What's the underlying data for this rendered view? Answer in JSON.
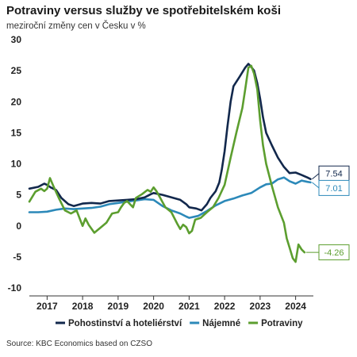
{
  "chart_data": {
    "type": "line",
    "title": "Potraviny versus služby ve spotřebitelském koši",
    "subtitle": "meziroční změny cen v Česku v  %",
    "source": "Source: KBC Economics based on CZSO",
    "ylim": [
      -10,
      30
    ],
    "yticks": [
      30,
      25,
      20,
      15,
      10,
      5,
      0,
      -5,
      -10
    ],
    "xlim": [
      2016.5,
      2024.5
    ],
    "xticks": [
      2017,
      2018,
      2019,
      2020,
      2021,
      2022,
      2023,
      2024
    ],
    "grid": "none",
    "legend_position": "bottom",
    "series": [
      {
        "name": "Pohostinství a hoteliérství",
        "color": "#12284c",
        "end_label": "7.54",
        "points": [
          [
            2016.5,
            6.0
          ],
          [
            2016.75,
            6.3
          ],
          [
            2016.92,
            6.8
          ],
          [
            2017.0,
            6.6
          ],
          [
            2017.1,
            6.2
          ],
          [
            2017.25,
            5.8
          ],
          [
            2017.4,
            4.5
          ],
          [
            2017.6,
            3.5
          ],
          [
            2017.75,
            3.2
          ],
          [
            2018.0,
            3.6
          ],
          [
            2018.25,
            3.7
          ],
          [
            2018.5,
            3.6
          ],
          [
            2018.75,
            4.0
          ],
          [
            2019.0,
            4.1
          ],
          [
            2019.25,
            4.2
          ],
          [
            2019.5,
            4.3
          ],
          [
            2019.75,
            4.6
          ],
          [
            2019.92,
            5.1
          ],
          [
            2020.0,
            5.3
          ],
          [
            2020.25,
            5.0
          ],
          [
            2020.5,
            4.6
          ],
          [
            2020.75,
            4.2
          ],
          [
            2020.92,
            3.5
          ],
          [
            2021.0,
            3.0
          ],
          [
            2021.2,
            2.8
          ],
          [
            2021.35,
            2.5
          ],
          [
            2021.5,
            3.5
          ],
          [
            2021.6,
            4.5
          ],
          [
            2021.75,
            5.6
          ],
          [
            2021.85,
            7.0
          ],
          [
            2021.92,
            9.0
          ],
          [
            2022.0,
            12.0
          ],
          [
            2022.08,
            16.0
          ],
          [
            2022.17,
            20.0
          ],
          [
            2022.25,
            22.5
          ],
          [
            2022.42,
            24.0
          ],
          [
            2022.58,
            25.5
          ],
          [
            2022.67,
            26.1
          ],
          [
            2022.75,
            25.6
          ],
          [
            2022.83,
            25.0
          ],
          [
            2022.92,
            23.0
          ],
          [
            2023.0,
            20.5
          ],
          [
            2023.08,
            17.5
          ],
          [
            2023.17,
            15.0
          ],
          [
            2023.33,
            13.0
          ],
          [
            2023.5,
            11.0
          ],
          [
            2023.67,
            9.5
          ],
          [
            2023.83,
            8.5
          ],
          [
            2024.0,
            8.6
          ],
          [
            2024.17,
            8.2
          ],
          [
            2024.33,
            7.8
          ],
          [
            2024.42,
            7.54
          ]
        ]
      },
      {
        "name": "Nájemné",
        "color": "#2c89b9",
        "end_label": "7.01",
        "points": [
          [
            2016.5,
            2.2
          ],
          [
            2016.75,
            2.2
          ],
          [
            2017.0,
            2.3
          ],
          [
            2017.25,
            2.6
          ],
          [
            2017.5,
            2.8
          ],
          [
            2017.75,
            2.7
          ],
          [
            2018.0,
            2.8
          ],
          [
            2018.25,
            2.9
          ],
          [
            2018.5,
            3.1
          ],
          [
            2018.75,
            3.5
          ],
          [
            2019.0,
            3.7
          ],
          [
            2019.25,
            3.9
          ],
          [
            2019.5,
            4.1
          ],
          [
            2019.75,
            4.3
          ],
          [
            2020.0,
            4.2
          ],
          [
            2020.25,
            3.2
          ],
          [
            2020.5,
            2.5
          ],
          [
            2020.75,
            2.0
          ],
          [
            2020.92,
            1.5
          ],
          [
            2021.0,
            1.3
          ],
          [
            2021.25,
            1.6
          ],
          [
            2021.5,
            2.4
          ],
          [
            2021.75,
            3.3
          ],
          [
            2022.0,
            4.0
          ],
          [
            2022.25,
            4.4
          ],
          [
            2022.5,
            4.9
          ],
          [
            2022.75,
            5.3
          ],
          [
            2023.0,
            6.2
          ],
          [
            2023.17,
            6.7
          ],
          [
            2023.33,
            6.8
          ],
          [
            2023.5,
            7.5
          ],
          [
            2023.67,
            7.8
          ],
          [
            2023.83,
            7.2
          ],
          [
            2024.0,
            6.8
          ],
          [
            2024.17,
            7.3
          ],
          [
            2024.33,
            7.1
          ],
          [
            2024.42,
            7.01
          ]
        ]
      },
      {
        "name": "Potraviny",
        "color": "#5c9e2f",
        "end_label": "-4.26",
        "points": [
          [
            2016.5,
            3.9
          ],
          [
            2016.67,
            5.5
          ],
          [
            2016.83,
            6.0
          ],
          [
            2016.92,
            5.6
          ],
          [
            2017.0,
            6.0
          ],
          [
            2017.08,
            7.7
          ],
          [
            2017.17,
            6.5
          ],
          [
            2017.33,
            4.5
          ],
          [
            2017.5,
            2.5
          ],
          [
            2017.67,
            2.0
          ],
          [
            2017.83,
            2.5
          ],
          [
            2018.0,
            0.0
          ],
          [
            2018.08,
            1.2
          ],
          [
            2018.17,
            0.2
          ],
          [
            2018.33,
            -1.1
          ],
          [
            2018.5,
            -0.3
          ],
          [
            2018.67,
            0.5
          ],
          [
            2018.83,
            2.0
          ],
          [
            2019.0,
            2.2
          ],
          [
            2019.08,
            3.0
          ],
          [
            2019.17,
            3.7
          ],
          [
            2019.25,
            4.0
          ],
          [
            2019.42,
            3.0
          ],
          [
            2019.5,
            4.5
          ],
          [
            2019.67,
            5.1
          ],
          [
            2019.83,
            5.8
          ],
          [
            2019.92,
            5.5
          ],
          [
            2020.0,
            6.2
          ],
          [
            2020.08,
            5.6
          ],
          [
            2020.17,
            4.7
          ],
          [
            2020.33,
            3.0
          ],
          [
            2020.5,
            2.2
          ],
          [
            2020.67,
            0.3
          ],
          [
            2020.75,
            -0.5
          ],
          [
            2020.83,
            0.2
          ],
          [
            2020.92,
            -0.2
          ],
          [
            2021.0,
            -1.2
          ],
          [
            2021.08,
            -0.8
          ],
          [
            2021.17,
            1.0
          ],
          [
            2021.33,
            1.3
          ],
          [
            2021.5,
            2.2
          ],
          [
            2021.67,
            3.0
          ],
          [
            2021.83,
            4.5
          ],
          [
            2022.0,
            6.6
          ],
          [
            2022.17,
            11.0
          ],
          [
            2022.33,
            15.0
          ],
          [
            2022.5,
            19.0
          ],
          [
            2022.58,
            22.0
          ],
          [
            2022.67,
            25.5
          ],
          [
            2022.75,
            25.8
          ],
          [
            2022.83,
            24.5
          ],
          [
            2022.92,
            22.0
          ],
          [
            2023.0,
            17.0
          ],
          [
            2023.08,
            13.0
          ],
          [
            2023.17,
            10.0
          ],
          [
            2023.33,
            6.5
          ],
          [
            2023.5,
            3.0
          ],
          [
            2023.67,
            0.5
          ],
          [
            2023.75,
            -2.0
          ],
          [
            2023.83,
            -3.5
          ],
          [
            2023.92,
            -5.2
          ],
          [
            2024.0,
            -5.8
          ],
          [
            2024.08,
            -3.0
          ],
          [
            2024.17,
            -3.8
          ],
          [
            2024.25,
            -4.26
          ]
        ]
      }
    ]
  }
}
